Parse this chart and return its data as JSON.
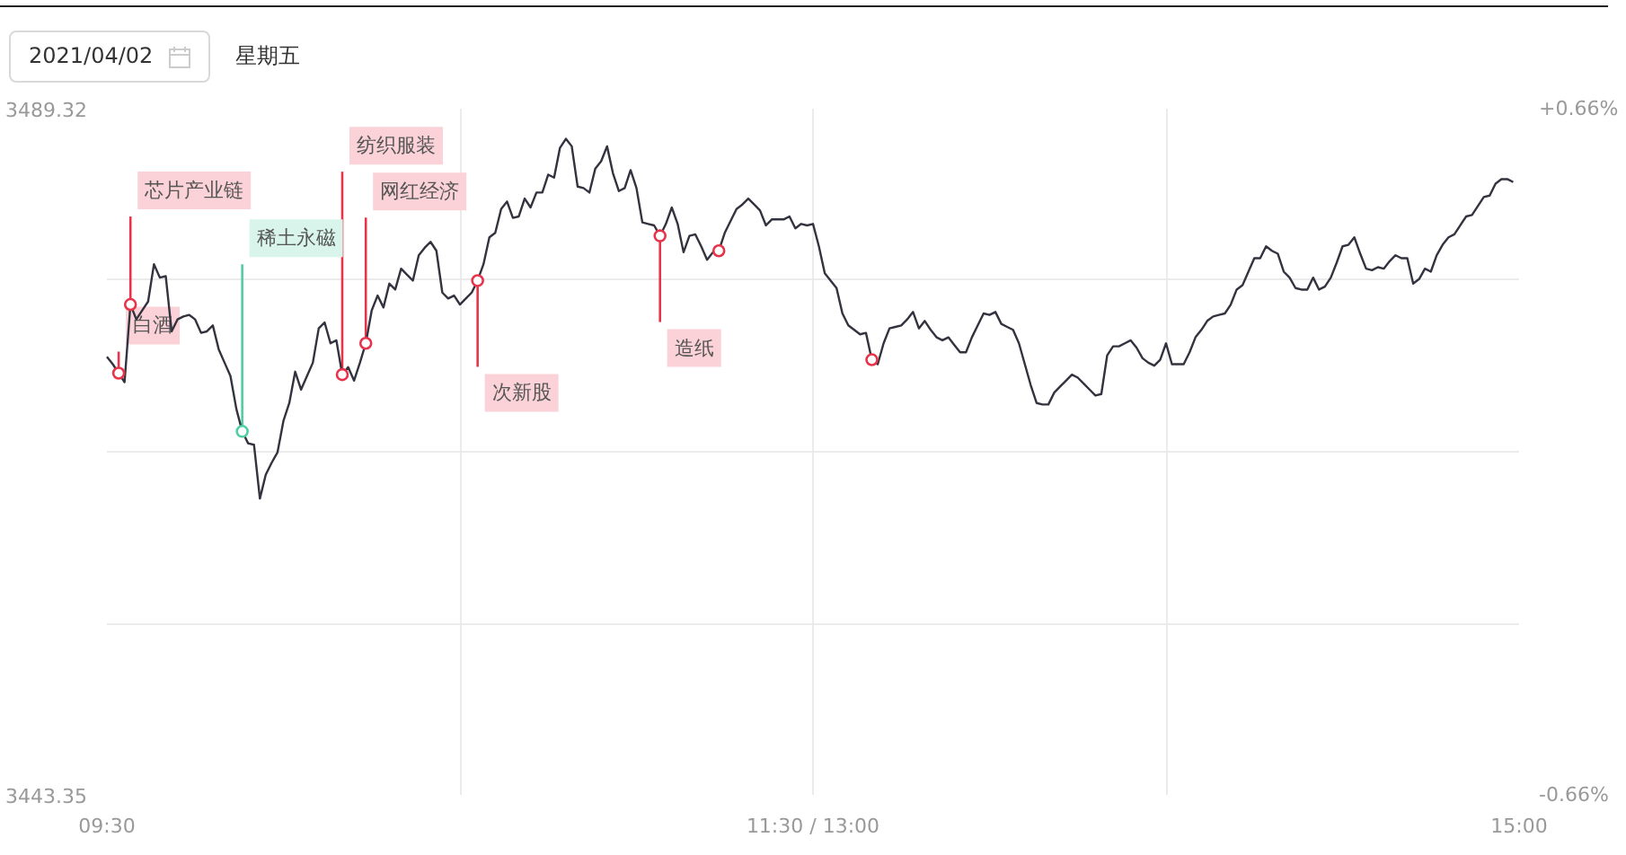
{
  "chart_data": {
    "type": "line",
    "title": "2021/04/02",
    "subtitle": "星期五",
    "categories": [
      "09:30",
      null,
      null,
      null,
      null,
      null,
      null,
      null,
      null,
      null,
      null,
      null,
      null,
      null,
      null,
      null,
      null,
      null,
      null,
      null,
      null,
      null,
      null,
      null,
      null,
      null,
      null,
      null,
      null,
      null,
      null,
      null,
      null,
      null,
      null,
      null,
      null,
      null,
      null,
      null,
      null,
      null,
      null,
      null,
      null,
      null,
      null,
      null,
      null,
      null,
      null,
      null,
      null,
      null,
      null,
      null,
      null,
      null,
      null,
      null,
      null,
      null,
      null,
      null,
      null,
      null,
      null,
      null,
      null,
      null,
      null,
      null,
      null,
      null,
      null,
      null,
      null,
      null,
      null,
      null,
      null,
      null,
      null,
      null,
      null,
      null,
      null,
      null,
      null,
      null,
      null,
      null,
      null,
      null,
      null,
      null,
      null,
      null,
      null,
      null,
      null,
      null,
      null,
      null,
      null,
      null,
      null,
      null,
      null,
      null,
      null,
      null,
      null,
      null,
      null,
      null,
      null,
      null,
      null,
      null,
      "11:30 / 13:00",
      null,
      null,
      null,
      null,
      null,
      null,
      null,
      null,
      null,
      null,
      null,
      null,
      null,
      null,
      null,
      null,
      null,
      null,
      null,
      null,
      null,
      null,
      null,
      null,
      null,
      null,
      null,
      null,
      null,
      null,
      null,
      null,
      null,
      null,
      null,
      null,
      null,
      null,
      null,
      null,
      null,
      null,
      null,
      null,
      null,
      null,
      null,
      null,
      null,
      null,
      null,
      null,
      null,
      null,
      null,
      null,
      null,
      null,
      null,
      null,
      null,
      null,
      null,
      null,
      null,
      null,
      null,
      null,
      null,
      null,
      null,
      null,
      null,
      null,
      null,
      null,
      null,
      null,
      null,
      null,
      null,
      null,
      null,
      null,
      null,
      null,
      null,
      null,
      null,
      null,
      null,
      null,
      null,
      null,
      null,
      null,
      null,
      null,
      null,
      null,
      null,
      null,
      null,
      null,
      null,
      null,
      null,
      null,
      null,
      null,
      null,
      null,
      null,
      null,
      null,
      null,
      null,
      null,
      null,
      "15:00"
    ],
    "ylim": [
      3443.35,
      3489.32
    ],
    "yticks": [
      3443.35,
      {
        "value": 3454.84,
        "label": null
      },
      {
        "value": 3466.34,
        "label": null
      },
      {
        "value": 3477.83,
        "label": null
      },
      3489.32
    ],
    "y2lim": [
      -0.66,
      0.66
    ],
    "y2ticks": [
      {
        "value": -0.66,
        "label": "-0.66%"
      },
      {
        "value": 0.66,
        "label": "+0.66%"
      }
    ],
    "grid": true,
    "series": [
      {
        "color": "#333340",
        "values": [
          3472.7,
          3472.2,
          3471.6,
          3471.0,
          3476.2,
          3475.2,
          3475.8,
          3476.4,
          3478.9,
          3478.0,
          3478.1,
          3474.4,
          3475.2,
          3475.4,
          3475.5,
          3475.2,
          3474.3,
          3474.4,
          3474.8,
          3473.2,
          3472.3,
          3471.4,
          3469.2,
          3467.7,
          3466.9,
          3466.8,
          3463.2,
          3464.8,
          3465.6,
          3466.3,
          3468.4,
          3469.6,
          3471.7,
          3470.5,
          3471.4,
          3472.3,
          3474.6,
          3475.0,
          3473.6,
          3473.8,
          3471.5,
          3472.0,
          3471.1,
          3472.3,
          3473.6,
          3475.8,
          3476.8,
          3476.0,
          3477.6,
          3477.2,
          3478.6,
          3478.2,
          3477.8,
          3479.5,
          3480.0,
          3480.4,
          3479.8,
          3477.0,
          3476.6,
          3476.8,
          3476.2,
          3476.6,
          3477.0,
          3477.8,
          3478.9,
          3480.7,
          3481.0,
          3482.6,
          3483.1,
          3482.0,
          3482.1,
          3483.3,
          3482.7,
          3483.7,
          3483.7,
          3484.9,
          3484.7,
          3486.7,
          3487.3,
          3486.8,
          3484.1,
          3484.0,
          3483.7,
          3485.3,
          3485.8,
          3486.8,
          3485.0,
          3483.8,
          3484.0,
          3485.2,
          3484.0,
          3481.7,
          3481.6,
          3481.5,
          3480.8,
          3481.6,
          3482.7,
          3481.6,
          3479.7,
          3480.8,
          3480.9,
          3480.1,
          3479.2,
          3479.7,
          3479.8,
          3481.0,
          3481.8,
          3482.6,
          3482.9,
          3483.3,
          3482.9,
          3482.5,
          3481.5,
          3481.9,
          3481.9,
          3481.9,
          3482.1,
          3481.3,
          3481.6,
          3481.5,
          3481.6,
          3480.1,
          3478.3,
          3477.8,
          3477.3,
          3475.6,
          3474.8,
          3474.5,
          3474.2,
          3474.3,
          3472.5,
          3472.2,
          3473.6,
          3474.6,
          3474.7,
          3474.8,
          3475.2,
          3475.7,
          3474.6,
          3475.1,
          3474.5,
          3474.0,
          3473.8,
          3474.0,
          3473.5,
          3473.0,
          3473.0,
          3474.0,
          3474.8,
          3475.6,
          3475.5,
          3475.7,
          3474.9,
          3474.7,
          3474.5,
          3473.6,
          3472.2,
          3470.8,
          3469.6,
          3469.5,
          3469.5,
          3470.3,
          3470.7,
          3471.1,
          3471.5,
          3471.3,
          3470.9,
          3470.5,
          3470.1,
          3470.2,
          3472.8,
          3473.4,
          3473.4,
          3473.6,
          3473.8,
          3473.3,
          3472.6,
          3472.3,
          3472.1,
          3472.5,
          3473.6,
          3472.2,
          3472.2,
          3472.2,
          3473.0,
          3474.0,
          3474.5,
          3475.1,
          3475.4,
          3475.5,
          3475.6,
          3476.2,
          3477.2,
          3477.5,
          3478.4,
          3479.3,
          3479.3,
          3480.1,
          3479.8,
          3479.6,
          3478.4,
          3478.0,
          3477.3,
          3477.2,
          3477.2,
          3478.0,
          3477.2,
          3477.4,
          3478.0,
          3479.0,
          3480.1,
          3480.2,
          3480.7,
          3479.6,
          3478.6,
          3478.5,
          3478.7,
          3478.6,
          3479.1,
          3479.5,
          3479.3,
          3479.3,
          3477.6,
          3477.9,
          3478.6,
          3478.4,
          3479.5,
          3480.2,
          3480.7,
          3480.9,
          3481.5,
          3482.1,
          3482.2,
          3482.8,
          3483.4,
          3483.5,
          3484.3,
          3484.6,
          3484.6,
          3484.4,
          null
        ]
      },
      {
        "type": "scatter",
        "marker": "circle",
        "values": [
          null,
          null,
          3471.6,
          null,
          3476.2,
          null,
          null,
          null,
          null,
          null,
          null,
          null,
          null,
          null,
          null,
          null,
          null,
          null,
          null,
          null,
          null,
          null,
          null,
          3467.7,
          null,
          null,
          null,
          null,
          null,
          null,
          null,
          null,
          null,
          null,
          null,
          null,
          null,
          null,
          null,
          null,
          3471.5,
          null,
          null,
          null,
          3473.6,
          null,
          null,
          null,
          null,
          null,
          null,
          null,
          null,
          null,
          null,
          null,
          null,
          null,
          null,
          null,
          null,
          null,
          null,
          3477.8,
          null,
          null,
          null,
          null,
          null,
          null,
          null,
          null,
          null,
          null,
          null,
          null,
          null,
          null,
          null,
          null,
          null,
          null,
          null,
          null,
          null,
          null,
          null,
          null,
          null,
          null,
          null,
          null,
          null,
          null,
          3480.8,
          null,
          null,
          null,
          null,
          null,
          null,
          null,
          null,
          null,
          3479.8,
          null,
          null,
          null,
          null,
          null,
          null,
          null,
          null,
          null,
          null,
          null,
          null,
          null,
          null,
          null,
          null,
          null,
          null,
          null,
          null,
          null,
          null,
          null,
          null,
          null,
          3472.5,
          null,
          null,
          null,
          null,
          null,
          null,
          null,
          null,
          null,
          null,
          null,
          null,
          null,
          null,
          null,
          null,
          null,
          null,
          null,
          null,
          null,
          null,
          null,
          null,
          null,
          null,
          null,
          null,
          null,
          null,
          null,
          null,
          null,
          null,
          null,
          null,
          null,
          null,
          null,
          null,
          null,
          null,
          null,
          null,
          null,
          null,
          null,
          null,
          null,
          null,
          null,
          null,
          null,
          null,
          null,
          null,
          null,
          null,
          null,
          null,
          null,
          null,
          null,
          null,
          null,
          null,
          null,
          null,
          null,
          null,
          null,
          null,
          null,
          null,
          null,
          null,
          null,
          null,
          null,
          null,
          null,
          null,
          null,
          null,
          null,
          null,
          null,
          null,
          null,
          null,
          null,
          null,
          null,
          null,
          null,
          null,
          null,
          null,
          null,
          null,
          null,
          null,
          null,
          null,
          null,
          null,
          null,
          null,
          null,
          null
        ],
        "colors": [
          null,
          null,
          "#e8334a",
          null,
          "#e8334a",
          null,
          null,
          null,
          null,
          null,
          null,
          null,
          null,
          null,
          null,
          null,
          null,
          null,
          null,
          null,
          null,
          null,
          null,
          "#4dcfa2",
          null,
          null,
          null,
          null,
          null,
          null,
          null,
          null,
          null,
          null,
          null,
          null,
          null,
          null,
          null,
          null,
          "#e8334a",
          null,
          null,
          null,
          "#e8334a",
          null,
          null,
          null,
          null,
          null,
          null,
          null,
          null,
          null,
          null,
          null,
          null,
          null,
          null,
          null,
          null,
          null,
          null,
          "#e8334a",
          null,
          null,
          null,
          null,
          null,
          null,
          null,
          null,
          null,
          null,
          null,
          null,
          null,
          null,
          null,
          null,
          null,
          null,
          null,
          null,
          null,
          null,
          null,
          null,
          null,
          null,
          null,
          null,
          null,
          null,
          "#e8334a",
          null,
          null,
          null,
          null,
          null,
          null,
          null,
          null,
          null,
          "#e8334a",
          null,
          null,
          null,
          null,
          null,
          null,
          null,
          null,
          null,
          null,
          null,
          null,
          null,
          null,
          null,
          null,
          null,
          null,
          null,
          null,
          null,
          null,
          null,
          null,
          null,
          "#e8334a",
          null,
          null,
          null,
          null,
          null,
          null,
          null,
          null,
          null,
          null,
          null,
          null,
          null,
          null,
          null,
          null,
          null,
          null,
          null,
          null,
          null,
          null,
          null,
          null,
          null,
          null,
          null,
          null,
          null,
          null,
          null,
          null,
          null,
          null,
          null,
          null,
          null,
          null,
          null,
          null,
          null,
          null,
          null,
          null,
          null,
          null,
          null,
          null,
          null,
          null,
          null,
          null,
          null,
          null,
          null,
          null,
          null,
          null,
          null,
          null,
          null,
          null,
          null,
          null,
          null,
          null,
          null,
          null,
          null,
          null,
          null,
          null,
          null,
          null,
          null,
          null,
          null,
          null,
          null,
          null,
          null,
          null,
          null,
          null,
          null,
          null,
          null,
          null,
          null,
          null,
          null,
          null,
          null,
          null,
          null,
          null,
          null,
          null,
          null,
          null,
          null,
          null,
          null,
          null,
          null,
          null,
          null,
          null,
          null,
          null
        ],
        "value_labels": [
          null,
          null,
          "白酒",
          null,
          "芯片产业链",
          null,
          null,
          null,
          null,
          null,
          null,
          null,
          null,
          null,
          null,
          null,
          null,
          null,
          null,
          null,
          null,
          null,
          null,
          "稀土永磁",
          null,
          null,
          null,
          null,
          null,
          null,
          null,
          null,
          null,
          null,
          null,
          null,
          null,
          null,
          null,
          null,
          "纺织服装",
          null,
          null,
          null,
          "网红经济",
          null,
          null,
          null,
          null,
          null,
          null,
          null,
          null,
          null,
          null,
          null,
          null,
          null,
          null,
          null,
          null,
          null,
          null,
          "次新股",
          null,
          null,
          null,
          null,
          null,
          null,
          null,
          null,
          null,
          null,
          null,
          null,
          null,
          null,
          null,
          null,
          null,
          null,
          null,
          null,
          null,
          null,
          null,
          null,
          null,
          null,
          null,
          null,
          null,
          null,
          "造纸",
          null,
          null,
          null,
          null,
          null,
          null,
          null,
          null,
          null,
          null,
          null,
          null,
          null,
          null,
          null,
          null,
          null,
          null,
          null,
          null,
          null,
          null,
          null,
          null,
          null,
          null,
          null,
          null,
          null,
          null,
          null,
          null,
          null,
          null,
          null,
          null,
          null,
          null,
          null,
          null,
          null,
          null,
          null,
          null,
          null,
          null,
          null,
          null,
          null,
          null,
          null,
          null,
          null,
          null,
          null,
          null,
          null,
          null,
          null,
          null,
          null,
          null,
          null,
          null,
          null,
          null,
          null,
          null,
          null,
          null,
          null,
          null,
          null,
          null,
          null,
          null,
          null,
          null,
          null,
          null,
          null,
          null,
          null,
          null,
          null,
          null,
          null,
          null,
          null,
          null,
          null,
          null,
          null,
          null,
          null,
          null,
          null,
          null,
          null,
          null,
          null,
          null,
          null,
          null,
          null,
          null,
          null,
          null,
          null,
          null,
          null,
          null,
          null,
          null,
          null,
          null,
          null,
          null,
          null,
          null,
          null,
          null,
          null,
          null,
          null,
          null,
          null,
          null,
          null,
          null,
          null,
          null,
          null,
          null,
          null,
          null,
          null,
          null,
          null,
          null,
          null,
          null,
          null,
          null,
          null,
          null
        ]
      }
    ]
  }
}
